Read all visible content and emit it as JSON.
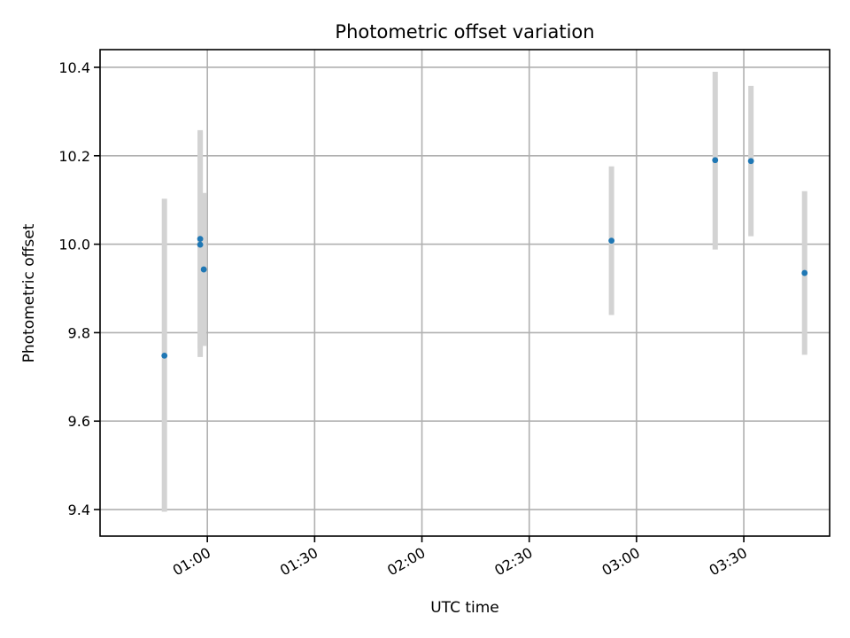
{
  "chart_data": {
    "type": "scatter",
    "title": "Photometric offset variation",
    "xlabel": "UTC time",
    "ylabel": "Photometric offset",
    "x_ticks": [
      "01:00",
      "01:30",
      "02:00",
      "02:30",
      "03:00",
      "03:30"
    ],
    "y_ticks": [
      "9.4",
      "9.6",
      "9.8",
      "10.0",
      "10.2",
      "10.4"
    ],
    "xlim": [
      "00:30",
      "03:54"
    ],
    "ylim": [
      9.34,
      10.44
    ],
    "grid": true,
    "colors": {
      "point": "#1f77b4",
      "error_bar": "#d3d3d3",
      "grid": "#b0b0b0"
    },
    "series": [
      {
        "points": [
          {
            "x": "00:48",
            "y": 9.748,
            "y_low": 9.395,
            "y_high": 10.103
          },
          {
            "x": "00:58",
            "y": 10.012,
            "y_low": 9.765,
            "y_high": 10.258
          },
          {
            "x": "00:58",
            "y": 9.999,
            "y_low": 9.745,
            "y_high": 10.255
          },
          {
            "x": "00:59",
            "y": 9.943,
            "y_low": 9.77,
            "y_high": 10.116
          },
          {
            "x": "02:53",
            "y": 10.008,
            "y_low": 9.84,
            "y_high": 10.176
          },
          {
            "x": "03:22",
            "y": 10.19,
            "y_low": 9.988,
            "y_high": 10.39
          },
          {
            "x": "03:32",
            "y": 10.188,
            "y_low": 10.018,
            "y_high": 10.358
          },
          {
            "x": "03:47",
            "y": 9.935,
            "y_low": 9.75,
            "y_high": 10.12
          }
        ]
      }
    ]
  }
}
